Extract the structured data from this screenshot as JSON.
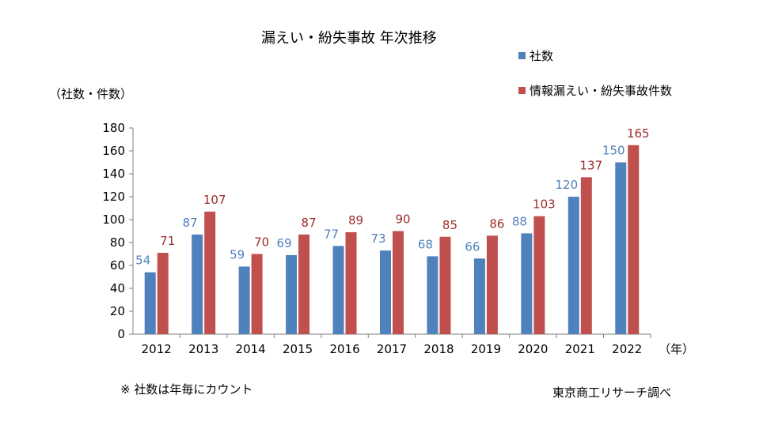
{
  "chart_data": {
    "type": "bar",
    "title": "漏えい・紛失事故 年次推移",
    "ylabel": "（社数・件数）",
    "xlabel_unit": "（年）",
    "categories": [
      "2012",
      "2013",
      "2014",
      "2015",
      "2016",
      "2017",
      "2018",
      "2019",
      "2020",
      "2021",
      "2022"
    ],
    "series": [
      {
        "name": "社数",
        "color": "#4f81bd",
        "label_color": "#4f81bd",
        "values": [
          54,
          87,
          59,
          69,
          77,
          73,
          68,
          66,
          88,
          120,
          150
        ]
      },
      {
        "name": "情報漏えい・紛失事故件数",
        "color": "#c0504d",
        "label_color": "#9b2c2c",
        "values": [
          71,
          107,
          70,
          87,
          89,
          90,
          85,
          86,
          103,
          137,
          165
        ]
      }
    ],
    "ylim": [
      0,
      180
    ],
    "yticks": [
      0,
      20,
      40,
      60,
      80,
      100,
      120,
      140,
      160,
      180
    ],
    "grid": false,
    "legend_position": "top-right"
  },
  "note": "※ 社数は年毎にカウント",
  "source": "東京商工リサーチ調べ"
}
